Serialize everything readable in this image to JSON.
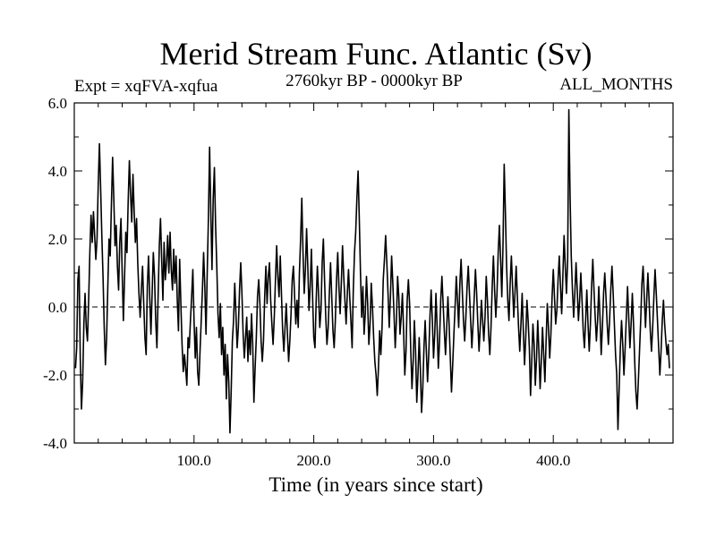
{
  "chart_data": {
    "type": "line",
    "title": "Merid Stream Func. Atlantic (Sv)",
    "subtitle": "2760kyr BP - 0000kyr BP",
    "experiment_label": "Expt = xqFVA-xqfua",
    "season_label": "ALL_MONTHS",
    "xlabel": "Time (in years since start)",
    "ylabel": "",
    "xlim": [
      0,
      500
    ],
    "ylim": [
      -4.0,
      6.0
    ],
    "xticks": [
      100,
      200,
      300,
      400
    ],
    "xtick_labels": [
      "100.0",
      "200.0",
      "300.0",
      "400.0"
    ],
    "yticks": [
      -4,
      -2,
      0,
      2,
      4,
      6
    ],
    "ytick_labels": [
      "-4.0",
      "-2.0",
      "0.0",
      "2.0",
      "4.0",
      "6.0"
    ],
    "zero_line": 0,
    "series": [
      {
        "name": "xqFVA-xqfua",
        "x_start": 1,
        "x_step": 1,
        "values": [
          -1.8,
          -1.2,
          0.8,
          1.2,
          -1.5,
          -3.0,
          -2.2,
          -0.5,
          0.4,
          -0.6,
          -1.0,
          0.2,
          1.6,
          2.7,
          1.9,
          2.8,
          2.1,
          1.4,
          2.0,
          3.6,
          4.8,
          3.5,
          2.1,
          0.9,
          -0.6,
          -1.7,
          -0.9,
          0.6,
          2.0,
          1.5,
          3.0,
          4.4,
          3.2,
          1.8,
          2.4,
          1.2,
          0.5,
          1.9,
          2.6,
          1.0,
          -0.4,
          0.9,
          2.2,
          1.6,
          3.1,
          4.3,
          3.3,
          2.5,
          3.9,
          2.8,
          1.9,
          2.6,
          1.3,
          0.4,
          -0.3,
          0.5,
          1.2,
          0.1,
          -0.9,
          -1.4,
          0.6,
          1.5,
          0.3,
          -0.8,
          0.4,
          1.6,
          0.9,
          -0.4,
          -1.2,
          0.3,
          1.8,
          2.6,
          1.4,
          0.2,
          1.9,
          0.8,
          1.3,
          2.1,
          1.0,
          2.2,
          1.1,
          0.5,
          1.7,
          0.7,
          1.5,
          0.2,
          -0.7,
          1.4,
          0.1,
          -1.1,
          -1.9,
          -1.4,
          -1.8,
          -2.3,
          -0.9,
          -1.2,
          -0.4,
          0.3,
          1.1,
          -0.4,
          -1.5,
          -0.6,
          -1.9,
          -2.3,
          -1.3,
          -0.4,
          0.5,
          1.6,
          0.6,
          -0.8,
          1.0,
          2.6,
          4.7,
          2.8,
          1.1,
          3.2,
          4.1,
          2.4,
          1.2,
          -0.2,
          -0.9,
          0.1,
          -1.4,
          -0.6,
          -2.0,
          -1.1,
          -2.7,
          -1.4,
          -2.2,
          -3.7,
          -2.5,
          -1.0,
          -0.4,
          0.7,
          -0.2,
          -1.2,
          -0.6,
          0.5,
          1.3,
          0.4,
          -0.8,
          -1.5,
          -0.9,
          -0.3,
          -1.6,
          -0.7,
          -1.4,
          -0.2,
          -1.1,
          -2.8,
          -1.8,
          -0.9,
          0.3,
          0.8,
          0.1,
          -1.0,
          -1.6,
          -1.0,
          0.3,
          1.2,
          0.1,
          0.9,
          1.3,
          0.2,
          -0.5,
          -1.1,
          -0.3,
          0.8,
          1.8,
          0.9,
          0.3,
          1.5,
          0.4,
          -0.7,
          -1.3,
          -0.6,
          0.1,
          -0.8,
          -1.6,
          -1.0,
          -0.2,
          0.8,
          1.2,
          0.3,
          -0.5,
          0.2,
          -0.6,
          1.0,
          2.0,
          3.2,
          1.6,
          0.4,
          1.1,
          2.3,
          1.2,
          -0.1,
          0.6,
          1.7,
          0.3,
          -0.9,
          -1.2,
          0.2,
          1.2,
          0.4,
          -0.6,
          -0.1,
          1.3,
          2.0,
          0.8,
          -0.3,
          -1.1,
          -0.6,
          0.4,
          1.3,
          0.3,
          -0.7,
          -1.2,
          -0.4,
          0.8,
          1.6,
          0.6,
          -0.2,
          0.7,
          1.8,
          0.9,
          0.2,
          -0.5,
          0.4,
          1.1,
          0.3,
          -0.4,
          -1.2,
          0.5,
          1.6,
          2.2,
          3.2,
          4.0,
          2.6,
          1.0,
          -0.3,
          0.6,
          -0.8,
          -0.2,
          0.9,
          0.1,
          -1.1,
          -0.5,
          0.7,
          0.0,
          -0.9,
          -1.6,
          -2.0,
          -2.6,
          -1.8,
          -0.7,
          -1.4,
          -0.6,
          0.8,
          1.4,
          2.1,
          1.3,
          0.4,
          -0.6,
          0.3,
          1.5,
          0.7,
          -0.2,
          -1.2,
          -0.4,
          0.9,
          0.3,
          -0.8,
          -0.3,
          0.4,
          -0.7,
          -2.0,
          -1.3,
          0.2,
          0.8,
          0.1,
          -1.3,
          -2.4,
          -1.6,
          -0.4,
          -1.3,
          -2.8,
          -2.0,
          -0.9,
          -1.8,
          -3.1,
          -2.4,
          -1.2,
          -0.4,
          -1.3,
          -2.2,
          -1.4,
          -0.3,
          0.5,
          -0.4,
          -1.5,
          -0.8,
          0.4,
          -0.6,
          -1.8,
          -1.0,
          0.2,
          0.9,
          0.1,
          -0.7,
          -1.4,
          -0.6,
          0.3,
          -0.5,
          -1.5,
          -2.5,
          -1.7,
          -0.8,
          0.0,
          0.9,
          0.2,
          -0.6,
          0.7,
          1.4,
          0.5,
          -0.4,
          -1.0,
          -0.3,
          0.6,
          1.2,
          0.4,
          -0.4,
          -1.2,
          -0.5,
          0.3,
          1.1,
          0.4,
          -0.5,
          -1.3,
          -0.6,
          0.2,
          -0.4,
          -1.0,
          -0.3,
          0.9,
          0.2,
          -0.8,
          -1.4,
          -0.6,
          0.6,
          1.5,
          0.5,
          -0.3,
          0.4,
          1.6,
          2.4,
          1.4,
          0.3,
          1.8,
          4.2,
          2.8,
          1.2,
          0.2,
          -0.4,
          0.7,
          1.5,
          0.6,
          -0.3,
          0.4,
          1.2,
          0.3,
          -0.6,
          -1.3,
          -0.5,
          0.4,
          -0.7,
          -1.7,
          -0.9,
          0.2,
          -0.4,
          -1.2,
          -2.6,
          -1.6,
          -0.5,
          -1.1,
          -2.3,
          -1.5,
          -0.4,
          -1.3,
          -2.4,
          -1.6,
          -0.6,
          -1.4,
          -2.2,
          -1.0,
          0.1,
          -0.6,
          -1.5,
          -0.8,
          0.3,
          1.1,
          0.3,
          -0.5,
          -0.1,
          0.8,
          1.5,
          0.6,
          -0.2,
          0.9,
          2.1,
          1.2,
          0.4,
          1.4,
          5.8,
          3.3,
          1.5,
          0.5,
          -0.3,
          0.4,
          1.3,
          0.5,
          -0.4,
          0.2,
          1.0,
          0.2,
          -0.7,
          -1.2,
          -0.4,
          0.5,
          -0.5,
          -1.3,
          -0.5,
          0.6,
          1.4,
          0.5,
          -0.3,
          -1.0,
          -0.4,
          0.6,
          -0.3,
          -1.4,
          -0.6,
          0.4,
          1.0,
          0.3,
          -0.5,
          -1.1,
          -0.4,
          0.5,
          1.2,
          0.4,
          -0.5,
          -1.4,
          -2.0,
          -3.6,
          -2.4,
          -1.2,
          -0.4,
          -1.1,
          -2.0,
          -1.2,
          -0.3,
          0.6,
          -0.3,
          -1.2,
          -0.5,
          0.4,
          -0.5,
          -1.6,
          -2.5,
          -3.0,
          -2.2,
          -1.3,
          -0.4,
          0.7,
          1.2,
          0.3,
          -0.6,
          0.2,
          1.0,
          0.2,
          -0.7,
          -1.3,
          -0.6,
          0.3,
          1.1,
          0.4,
          -0.4,
          -1.2,
          -2.0,
          -1.3,
          -0.4,
          0.2,
          -0.5,
          -1.0,
          -1.4,
          -1.1,
          -1.8
        ]
      }
    ]
  }
}
